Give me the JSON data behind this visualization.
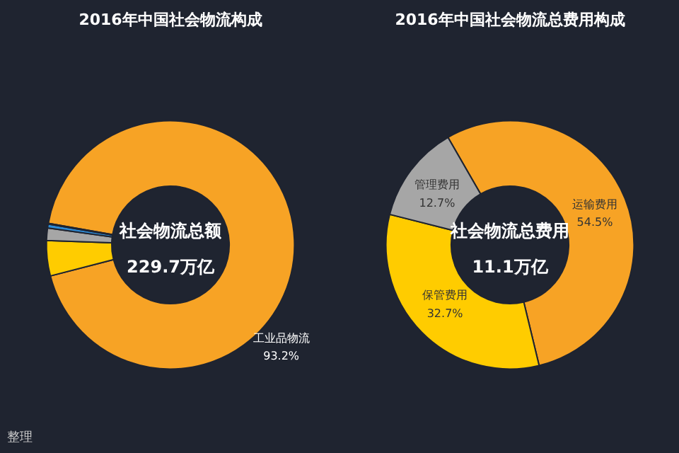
{
  "chart_data": [
    {
      "type": "donut",
      "title": "2016年中国社会物流构成",
      "categories": [
        "工业品物流",
        null,
        null,
        null,
        null
      ],
      "values": [
        93.2,
        4.6,
        1.6,
        0.5,
        0.1
      ],
      "colors": [
        "#f7a325",
        "#ffcc00",
        "#a6a6a6",
        "#2e8bd6",
        "#3cbfae"
      ],
      "value_labels": [
        "93.2%",
        null,
        null,
        null,
        null
      ],
      "annotations": [
        "社会物流总额",
        "229.7万亿",
        "整理"
      ]
    },
    {
      "type": "donut",
      "title": "2016年中国社会物流总费用构成",
      "categories": [
        "运输费用",
        "保管费用",
        "管理费用"
      ],
      "values": [
        54.5,
        32.7,
        12.7
      ],
      "colors": [
        "#f7a325",
        "#ffcc00",
        "#a6a6a6"
      ],
      "value_labels": [
        "54.5%",
        "32.7%",
        "12.7%"
      ],
      "annotations": [
        "社会物流总费用",
        "11.1万亿"
      ]
    }
  ]
}
